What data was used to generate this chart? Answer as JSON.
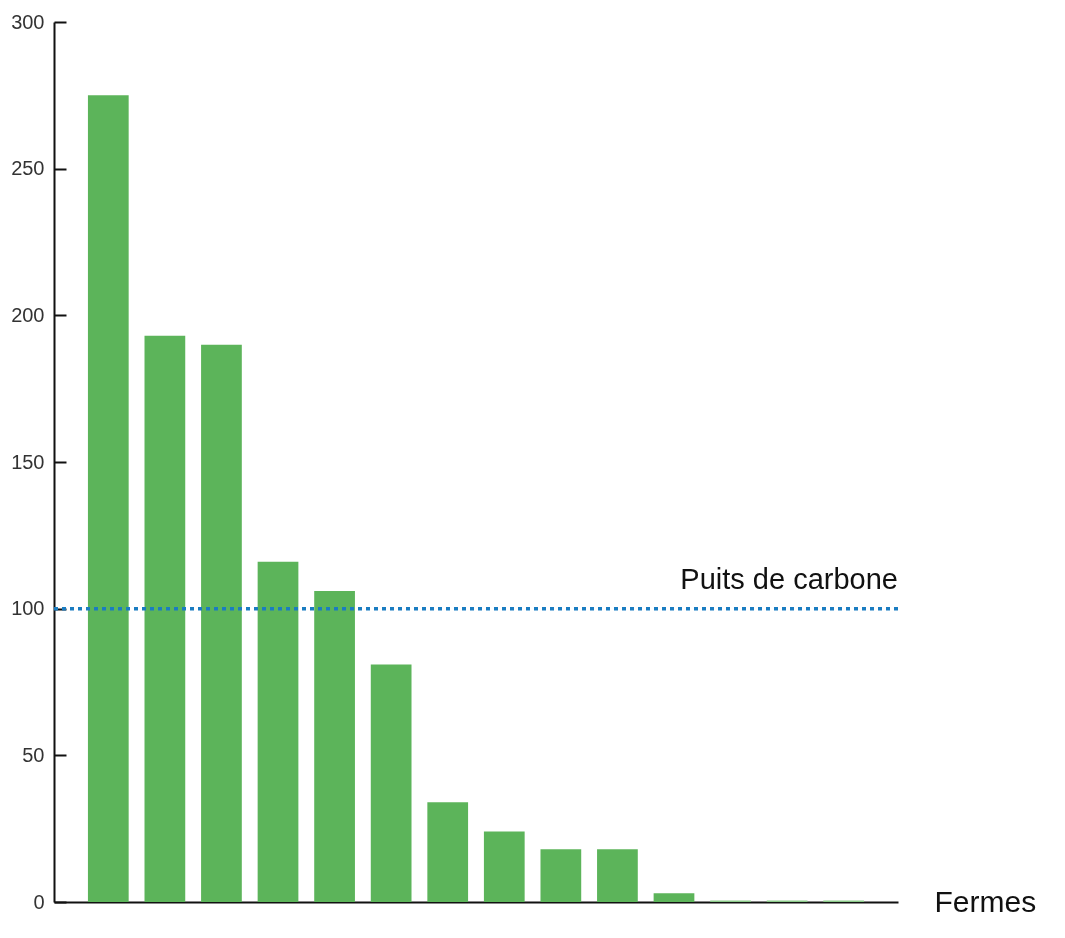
{
  "chart_data": {
    "type": "bar",
    "xlabel": "Fermes",
    "categories": [
      null,
      null,
      null,
      null,
      null,
      null,
      null,
      null,
      null,
      null,
      null,
      null,
      null,
      null
    ],
    "values": [
      275,
      193,
      190,
      116,
      106,
      81,
      34,
      24,
      18,
      18,
      3,
      0.5,
      0.5,
      0.5
    ],
    "colors": [
      "#5cb45a",
      "#5cb45a",
      "#5cb45a",
      "#5cb45a",
      "#5cb45a",
      "#5cb45a",
      "#5cb45a",
      "#5cb45a",
      "#5cb45a",
      "#5cb45a",
      "#5cb45a",
      "#8ccb8a",
      "#8ccb8a",
      "#8ccb8a"
    ],
    "ylim": [
      0,
      300
    ],
    "yticks": [
      0,
      50,
      100,
      150,
      200,
      250,
      300
    ],
    "ref_lines": [
      {
        "axis": "y",
        "value": 100,
        "label": "Puits de carbone",
        "color": "#1a7cc1",
        "line_style": "dotted"
      }
    ],
    "grid": false
  }
}
